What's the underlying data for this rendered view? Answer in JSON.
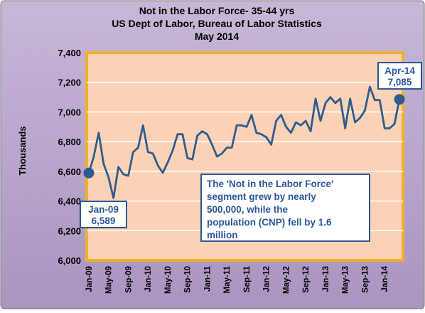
{
  "chart_data": {
    "type": "line",
    "title": [
      "Not in the Labor Force- 35-44 yrs",
      "US Dept of Labor, Bureau of Labor Statistics",
      "May 2014"
    ],
    "ylabel": "Thousands",
    "xlabel": "",
    "ylim": [
      6000,
      7400
    ],
    "yticks": [
      "6,000",
      "6,200",
      "6,400",
      "6,600",
      "6,800",
      "7,000",
      "7,200",
      "7,400"
    ],
    "xtick_labels": [
      "Jan-09",
      "May-09",
      "Sep-09",
      "Jan-10",
      "May-10",
      "Sep-10",
      "Jan-11",
      "May-11",
      "Sep-11",
      "Jan-12",
      "May-12",
      "Sep-12",
      "Jan-13",
      "May-13",
      "Sep-13",
      "Jan-14"
    ],
    "grid": true,
    "legend": "none",
    "series": [
      {
        "values": [
          6589,
          6700,
          6860,
          6650,
          6560,
          6420,
          6630,
          6580,
          6570,
          6730,
          6760,
          6910,
          6730,
          6720,
          6640,
          6590,
          6660,
          6740,
          6850,
          6850,
          6690,
          6680,
          6840,
          6870,
          6850,
          6780,
          6700,
          6720,
          6760,
          6760,
          6910,
          6910,
          6900,
          6980,
          6860,
          6850,
          6830,
          6780,
          6940,
          6980,
          6900,
          6860,
          6930,
          6910,
          6940,
          6870,
          7090,
          6940,
          7060,
          7100,
          7060,
          7090,
          6890,
          7090,
          6930,
          6960,
          7010,
          7170,
          7080,
          7080,
          6890,
          6890,
          6920,
          7085
        ]
      }
    ],
    "annotations": [
      {
        "label": "Jan-09",
        "value": "6,589"
      },
      {
        "label": "Apr-14",
        "value": "7,085"
      }
    ],
    "note": [
      "The 'Not in the  Labor Force'",
      "segment grew by nearly",
      "500,000, while the",
      "population (CNP) fell by 1.6",
      "million"
    ]
  },
  "colors": {
    "frame_bg": "#b7a5cb",
    "plot_bg": "#fcd2b6",
    "plot_border": "#efb12a",
    "line": "#2e5c8e",
    "callout": "#2b579a"
  }
}
